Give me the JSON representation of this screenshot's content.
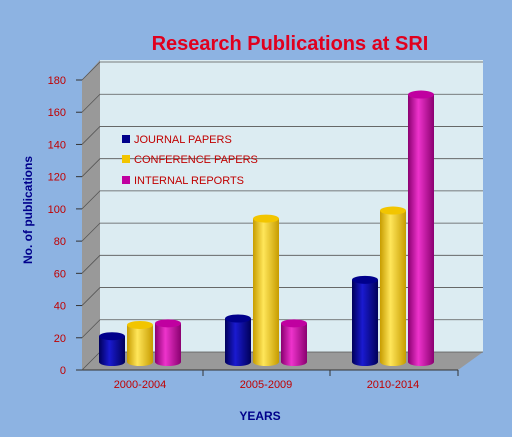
{
  "chart_data": {
    "type": "bar",
    "title": "Research Publications at SRI",
    "xlabel": "YEARS",
    "ylabel": "No. of publications",
    "categories": [
      "2000-2004",
      "2005-2009",
      "2010-2014"
    ],
    "ylim": [
      0,
      180
    ],
    "yticks": [
      "0",
      "20",
      "40",
      "60",
      "80",
      "100",
      "120",
      "140",
      "160",
      "180"
    ],
    "grid": true,
    "legend_position": "left-inside",
    "series": [
      {
        "name": "JOURNAL PAPERS",
        "values": [
          16,
          27,
          51
        ],
        "color": "#00008b"
      },
      {
        "name": "CONFERENCE PAPERS",
        "values": [
          23,
          89,
          94
        ],
        "color": "#f2c500"
      },
      {
        "name": "INTERNAL REPORTS",
        "values": [
          24,
          24,
          166
        ],
        "color": "#c000a0"
      }
    ],
    "colors": {
      "background": "#8db3e2",
      "plot_back": "#dcecf2",
      "plot_side": "#999999",
      "floor": "#999999",
      "title": "#e0001e",
      "tick_labels": "#c00000",
      "axis_titles": "#00008b",
      "legend_text": "#c00000"
    }
  }
}
